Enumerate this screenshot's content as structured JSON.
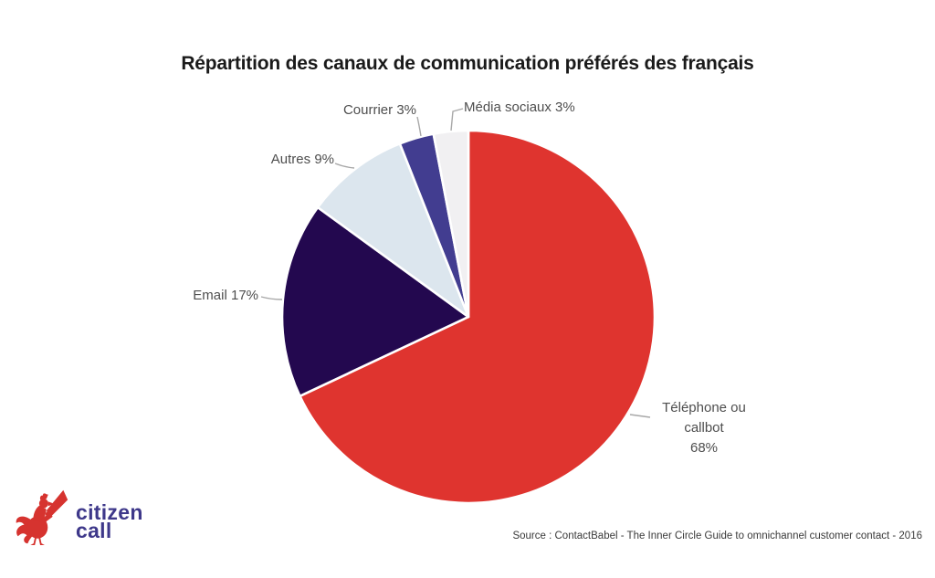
{
  "chart_data": {
    "type": "pie",
    "title": "Répartition des canaux de communication préférés des français",
    "start_angle_deg": 0,
    "direction": "clockwise",
    "legend": "none",
    "background": "#ffffff",
    "slices": [
      {
        "id": "telephone",
        "label": "Téléphone ou callbot",
        "pct": 68,
        "color": "#DF342F",
        "display": "Téléphone ou callbot",
        "display_pct": "68%"
      },
      {
        "id": "email",
        "label": "Email",
        "pct": 17,
        "color": "#23084F",
        "display": "Email 17%"
      },
      {
        "id": "autres",
        "label": "Autres",
        "pct": 9,
        "color": "#DCE6EE",
        "display": "Autres 9%"
      },
      {
        "id": "courrier",
        "label": "Courrier",
        "pct": 3,
        "color": "#423D90",
        "display": "Courrier 3%"
      },
      {
        "id": "media-sociaux",
        "label": "Média sociaux",
        "pct": 3,
        "color": "#F1F0F2",
        "display": "Média sociaux 3%"
      }
    ]
  },
  "source": "Source : ContactBabel - The Inner Circle Guide to omnichannel customer contact - 2016",
  "logo": {
    "line1": "citizen",
    "line2": "call",
    "brand_red": "#D6332F",
    "brand_indigo": "#3E388A"
  }
}
